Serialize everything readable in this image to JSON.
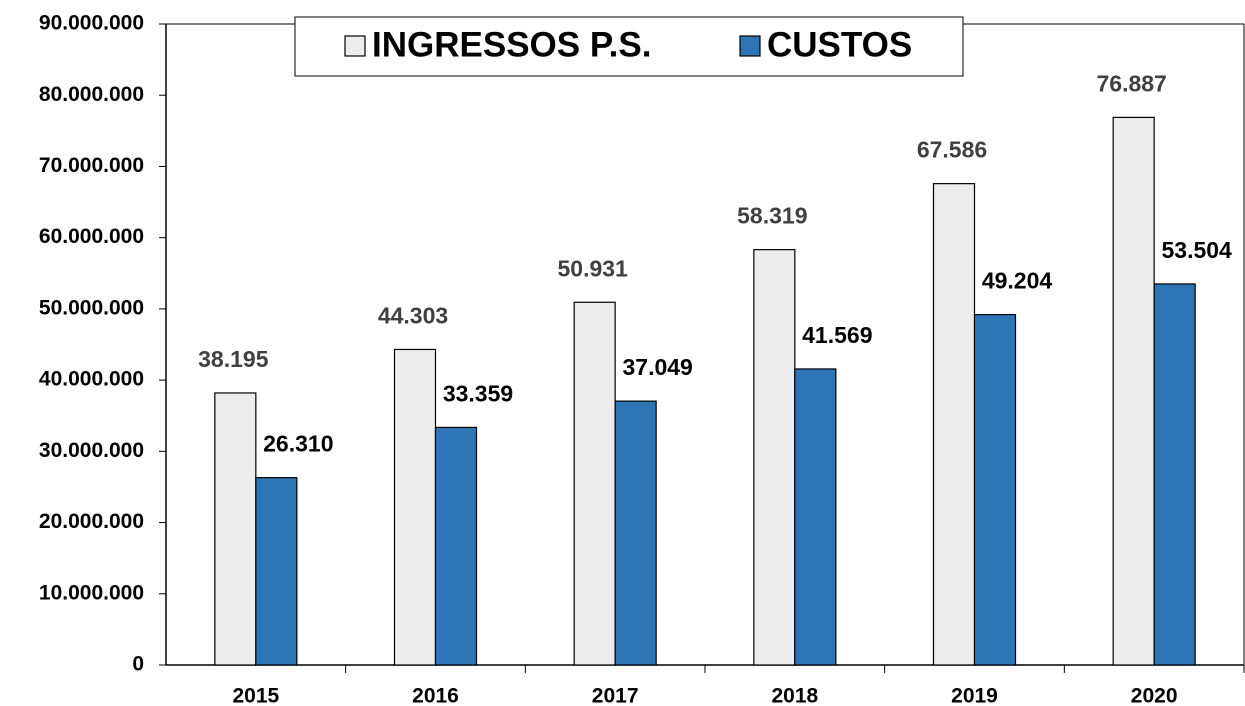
{
  "chart_data": {
    "type": "bar",
    "categories": [
      "2015",
      "2016",
      "2017",
      "2018",
      "2019",
      "2020"
    ],
    "series": [
      {
        "name": "INGRESSOS P.S.",
        "color": "#ececec",
        "values": [
          38195000,
          44303000,
          50931000,
          58319000,
          67586000,
          76887000
        ],
        "value_labels": [
          "38.195",
          "44.303",
          "50.931",
          "58.319",
          "67.586",
          "76.887"
        ]
      },
      {
        "name": "CUSTOS",
        "color": "#2e75b6",
        "values": [
          26310000,
          33359000,
          37049000,
          41569000,
          49204000,
          53504000
        ],
        "value_labels": [
          "26.310",
          "33.359",
          "37.049",
          "41.569",
          "49.204",
          "53.504"
        ]
      }
    ],
    "ylim": [
      0,
      90000000
    ],
    "yticks": [
      0,
      {
        "value": 10000000,
        "label": "10.000.000"
      },
      {
        "value": 20000000,
        "label": "20.000.000"
      },
      {
        "value": 30000000,
        "label": "30.000.000"
      },
      {
        "value": 40000000,
        "label": "40.000.000"
      },
      {
        "value": 50000000,
        "label": "50.000.000"
      },
      {
        "value": 60000000,
        "label": "60.000.000"
      },
      {
        "value": 70000000,
        "label": "70.000.000"
      },
      {
        "value": 80000000,
        "label": "80.000.000"
      },
      {
        "value": 90000000,
        "label": "90.000.000"
      }
    ],
    "legend": "top"
  }
}
